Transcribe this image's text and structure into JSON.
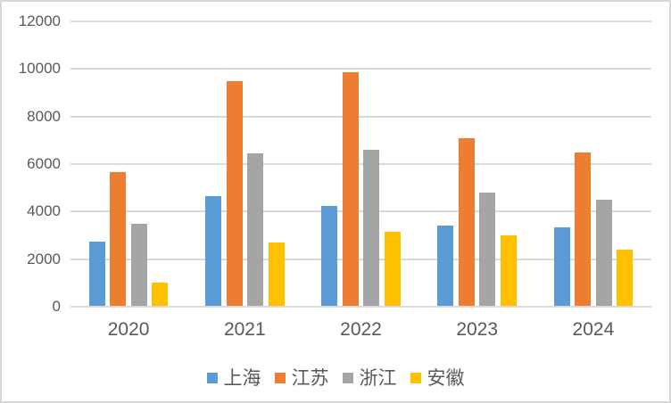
{
  "chart_data": {
    "type": "bar",
    "title": "",
    "categories": [
      "2020",
      "2021",
      "2022",
      "2023",
      "2024"
    ],
    "series": [
      {
        "name": "上海",
        "color": "#5B9BD5",
        "values": [
          2750,
          4650,
          4250,
          3400,
          3350
        ]
      },
      {
        "name": "江苏",
        "color": "#ED7D31",
        "values": [
          5650,
          9500,
          9850,
          7100,
          6500
        ]
      },
      {
        "name": "浙江",
        "color": "#A5A5A5",
        "values": [
          3500,
          6450,
          6600,
          4800,
          4500
        ]
      },
      {
        "name": "安徽",
        "color": "#FFC000",
        "values": [
          1000,
          2700,
          3150,
          3000,
          2400
        ]
      }
    ],
    "xlabel": "",
    "ylabel": "",
    "ylim": [
      0,
      12000
    ],
    "ytick_interval": 2000,
    "yticks": [
      "0",
      "2000",
      "4000",
      "6000",
      "8000",
      "10000",
      "12000"
    ],
    "grid": true,
    "legend_position": "bottom"
  },
  "colors": {
    "background": "#FFFFFF",
    "border": "#D9D9D9",
    "gridline": "#D9D9D9",
    "axis_line": "#D9D9D9",
    "tick_text": "#595959"
  }
}
